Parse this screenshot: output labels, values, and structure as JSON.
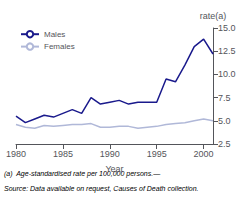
{
  "chart_data": {
    "type": "line",
    "xlabel": "Year",
    "ylabel": "rate(a)",
    "x": [
      1980,
      1981,
      1982,
      1983,
      1984,
      1985,
      1986,
      1987,
      1988,
      1989,
      1990,
      1991,
      1992,
      1993,
      1994,
      1995,
      1996,
      1997,
      1998,
      1999,
      2000,
      2001
    ],
    "series": [
      {
        "name": "Males",
        "color": "#1a1a8c",
        "values": [
          5.5,
          4.8,
          5.2,
          5.6,
          5.4,
          5.8,
          6.2,
          5.8,
          7.5,
          6.8,
          7.0,
          7.2,
          6.8,
          7.0,
          7.0,
          7.0,
          9.5,
          9.2,
          11.0,
          13.0,
          13.8,
          12.2
        ]
      },
      {
        "name": "Females",
        "color": "#b0b8d8",
        "values": [
          4.6,
          4.3,
          4.2,
          4.5,
          4.4,
          4.5,
          4.6,
          4.6,
          4.7,
          4.3,
          4.3,
          4.4,
          4.4,
          4.2,
          4.3,
          4.4,
          4.6,
          4.7,
          4.8,
          5.0,
          5.2,
          5.0
        ]
      }
    ],
    "xlim": [
      1980,
      2001
    ],
    "xticks": [
      1980,
      1985,
      1990,
      1995,
      2000
    ],
    "ylim": [
      2.5,
      15.0
    ],
    "yticks": [
      2.5,
      {
        "value": 5.0,
        "label": "5.0"
      },
      7.5,
      {
        "value": 10.0,
        "label": "10.0"
      },
      12.5,
      {
        "value": 15.0,
        "label": "15.0"
      }
    ],
    "grid": false,
    "legend": "upper left",
    "annotations": [
      "(a)  Age-standardised rate per 100,000 persons.—",
      "Source: Data available on request, Causes of Death collection."
    ]
  }
}
